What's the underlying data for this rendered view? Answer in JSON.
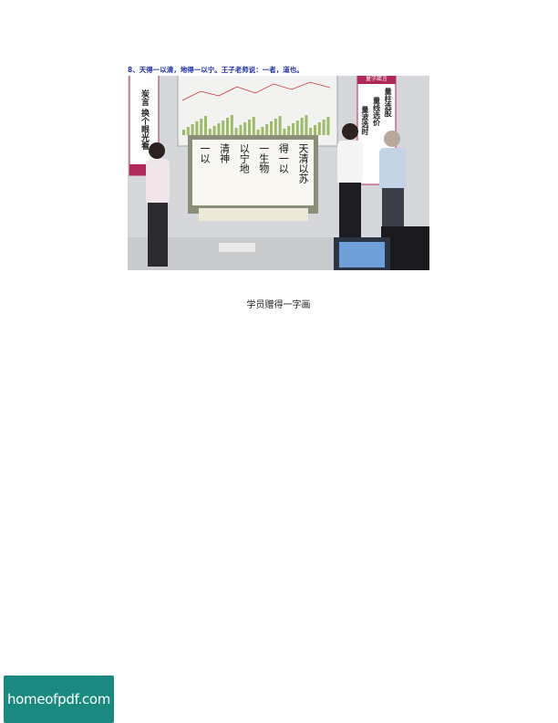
{
  "photo": {
    "heading": "8、天得一以清，地得一以宁。王子老师说：一者，道也。",
    "left_banner": "炭言 换个眼光看",
    "right_banner_title": "量学箴言",
    "right_banner_lines": [
      "量柱选股",
      "量线选价",
      "量波选时"
    ],
    "calligraphy_columns": [
      "天清以苏",
      "得一以",
      "一生物",
      "以宁地",
      "清神",
      "一以"
    ],
    "colors": {
      "heading": "#1f2fa6",
      "banner": "#b0285a",
      "wall": "#d9dadc",
      "chart_bar": "#9dbb6a"
    }
  },
  "caption": "学员赠得一字画",
  "watermark": "homeofpdf.com"
}
